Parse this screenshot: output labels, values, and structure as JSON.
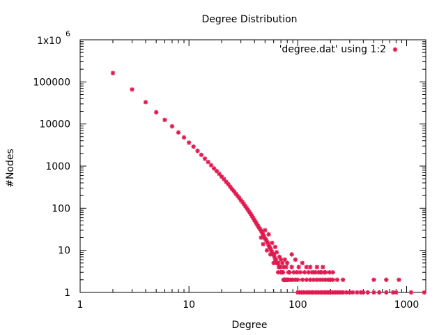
{
  "chart_data": {
    "type": "scatter",
    "title": "Degree Distribution",
    "xlabel": "Degree",
    "ylabel": "#Nodes",
    "xscale": "log",
    "yscale": "log",
    "xlim": [
      1,
      1500
    ],
    "ylim": [
      1,
      1000000
    ],
    "x_ticks": [
      {
        "value": 1,
        "label": "1"
      },
      {
        "value": 10,
        "label": "10"
      },
      {
        "value": 100,
        "label": "100"
      },
      {
        "value": 1000,
        "label": "1000"
      }
    ],
    "y_ticks": [
      {
        "value": 1,
        "label": "1"
      },
      {
        "value": 10,
        "label": "10"
      },
      {
        "value": 100,
        "label": "100"
      },
      {
        "value": 1000,
        "label": "1000"
      },
      {
        "value": 10000,
        "label": "10000"
      },
      {
        "value": 100000,
        "label": "100000"
      }
    ],
    "y_top_tick": {
      "value": 1000000,
      "mantissa": "1x10",
      "exponent": "6"
    },
    "grid": false,
    "legend": "top-right",
    "series": [
      {
        "name": "'degree.dat' using 1:2",
        "color": "#e0194f",
        "marker": "star",
        "points": [
          [
            2,
            162000
          ],
          [
            3,
            66000
          ],
          [
            4,
            33000
          ],
          [
            5,
            19000
          ],
          [
            6,
            12500
          ],
          [
            7,
            8800
          ],
          [
            8,
            6300
          ],
          [
            9,
            4800
          ],
          [
            10,
            3600
          ],
          [
            11,
            2900
          ],
          [
            12,
            2300
          ],
          [
            13,
            1850
          ],
          [
            14,
            1500
          ],
          [
            15,
            1250
          ],
          [
            16,
            1050
          ],
          [
            17,
            880
          ],
          [
            18,
            760
          ],
          [
            19,
            650
          ],
          [
            20,
            560
          ],
          [
            21,
            490
          ],
          [
            22,
            420
          ],
          [
            23,
            370
          ],
          [
            24,
            320
          ],
          [
            25,
            280
          ],
          [
            26,
            250
          ],
          [
            27,
            220
          ],
          [
            28,
            195
          ],
          [
            29,
            175
          ],
          [
            30,
            155
          ],
          [
            31,
            140
          ],
          [
            32,
            125
          ],
          [
            33,
            112
          ],
          [
            34,
            100
          ],
          [
            35,
            90
          ],
          [
            36,
            80
          ],
          [
            37,
            72
          ],
          [
            38,
            65
          ],
          [
            39,
            58
          ],
          [
            40,
            52
          ],
          [
            41,
            47
          ],
          [
            42,
            42
          ],
          [
            43,
            38
          ],
          [
            44,
            35
          ],
          [
            45,
            32
          ],
          [
            46,
            29
          ],
          [
            47,
            26
          ],
          [
            48,
            24
          ],
          [
            49,
            21
          ],
          [
            50,
            19
          ],
          [
            51,
            18
          ],
          [
            52,
            16
          ],
          [
            53,
            15
          ],
          [
            54,
            13
          ],
          [
            55,
            12
          ],
          [
            56,
            11
          ],
          [
            57,
            10
          ],
          [
            58,
            9
          ],
          [
            59,
            8
          ],
          [
            60,
            8
          ],
          [
            61,
            7
          ],
          [
            62,
            6
          ],
          [
            63,
            6
          ],
          [
            64,
            5
          ],
          [
            65,
            5
          ],
          [
            66,
            5
          ],
          [
            67,
            4
          ],
          [
            68,
            4
          ],
          [
            69,
            4
          ],
          [
            70,
            3
          ],
          [
            71,
            3
          ],
          [
            72,
            3
          ],
          [
            73,
            3
          ],
          [
            74,
            2
          ],
          [
            75,
            2
          ],
          [
            76,
            2
          ],
          [
            78,
            2
          ],
          [
            80,
            2
          ],
          [
            82,
            2
          ],
          [
            46,
            20
          ],
          [
            48,
            14
          ],
          [
            50,
            30
          ],
          [
            52,
            10
          ],
          [
            54,
            24
          ],
          [
            56,
            8
          ],
          [
            58,
            15
          ],
          [
            60,
            5
          ],
          [
            62,
            12
          ],
          [
            64,
            9
          ],
          [
            66,
            3
          ],
          [
            68,
            7
          ],
          [
            70,
            6
          ],
          [
            72,
            5
          ],
          [
            74,
            4
          ],
          [
            76,
            6
          ],
          [
            78,
            4
          ],
          [
            80,
            5
          ],
          [
            82,
            3
          ],
          [
            84,
            3
          ],
          [
            86,
            2
          ],
          [
            88,
            4
          ],
          [
            90,
            2
          ],
          [
            92,
            3
          ],
          [
            95,
            2
          ],
          [
            98,
            3
          ],
          [
            100,
            2
          ],
          [
            105,
            3
          ],
          [
            110,
            2
          ],
          [
            115,
            3
          ],
          [
            120,
            2
          ],
          [
            125,
            3
          ],
          [
            130,
            2
          ],
          [
            135,
            3
          ],
          [
            140,
            2
          ],
          [
            145,
            3
          ],
          [
            150,
            2
          ],
          [
            155,
            3
          ],
          [
            160,
            2
          ],
          [
            165,
            3
          ],
          [
            170,
            2
          ],
          [
            175,
            3
          ],
          [
            180,
            2
          ],
          [
            190,
            2
          ],
          [
            200,
            2
          ],
          [
            210,
            2
          ],
          [
            230,
            2
          ],
          [
            260,
            2
          ],
          [
            100,
            1
          ],
          [
            104,
            1
          ],
          [
            108,
            1
          ],
          [
            112,
            1
          ],
          [
            116,
            1
          ],
          [
            120,
            1
          ],
          [
            124,
            1
          ],
          [
            128,
            1
          ],
          [
            132,
            1
          ],
          [
            136,
            1
          ],
          [
            140,
            1
          ],
          [
            145,
            1
          ],
          [
            150,
            1
          ],
          [
            155,
            1
          ],
          [
            160,
            1
          ],
          [
            165,
            1
          ],
          [
            170,
            1
          ],
          [
            175,
            1
          ],
          [
            180,
            1
          ],
          [
            185,
            1
          ],
          [
            190,
            1
          ],
          [
            195,
            1
          ],
          [
            200,
            1
          ],
          [
            210,
            1
          ],
          [
            220,
            1
          ],
          [
            230,
            1
          ],
          [
            240,
            1
          ],
          [
            250,
            1
          ],
          [
            260,
            1
          ],
          [
            280,
            1
          ],
          [
            300,
            1
          ],
          [
            320,
            1
          ],
          [
            350,
            1
          ],
          [
            380,
            1
          ],
          [
            400,
            1
          ],
          [
            440,
            1
          ],
          [
            500,
            1
          ],
          [
            560,
            1
          ],
          [
            650,
            1
          ],
          [
            750,
            1
          ],
          [
            800,
            1
          ],
          [
            1100,
            1
          ],
          [
            1450,
            1
          ],
          [
            500,
            2
          ],
          [
            650,
            2
          ],
          [
            850,
            2
          ],
          [
            88,
            8
          ],
          [
            95,
            6
          ],
          [
            102,
            4
          ],
          [
            110,
            5
          ],
          [
            120,
            4
          ],
          [
            130,
            4
          ],
          [
            140,
            3
          ],
          [
            150,
            4
          ],
          [
            160,
            3
          ],
          [
            170,
            4
          ],
          [
            180,
            3
          ],
          [
            195,
            3
          ],
          [
            210,
            3
          ]
        ]
      }
    ]
  }
}
